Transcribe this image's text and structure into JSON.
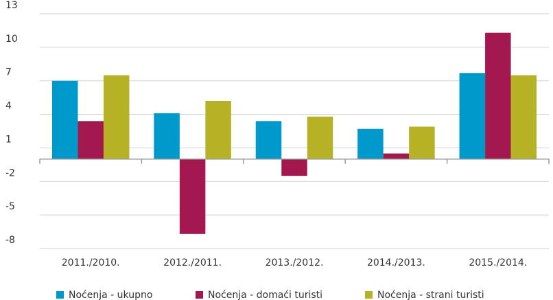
{
  "chart_data": {
    "type": "bar",
    "categories": [
      "2011./2010.",
      "2012./2011.",
      "2013./2012.",
      "2014./2013.",
      "2015./2014."
    ],
    "series": [
      {
        "name": "Noćenja - ukupno",
        "color": "#0099cc",
        "values": [
          7.0,
          4.1,
          3.4,
          2.7,
          7.7
        ]
      },
      {
        "name": "Noćenja - domaći turisti",
        "color": "#a3194f",
        "values": [
          3.4,
          -6.7,
          -1.5,
          0.5,
          11.3
        ]
      },
      {
        "name": "Noćenja - strani turisti",
        "color": "#b5b325",
        "values": [
          7.5,
          5.2,
          3.8,
          2.9,
          7.5
        ]
      }
    ],
    "ylim": [
      -8,
      13
    ],
    "yticks": [
      13,
      10,
      7,
      4,
      1,
      -2,
      -5,
      -8
    ],
    "grid": true
  }
}
